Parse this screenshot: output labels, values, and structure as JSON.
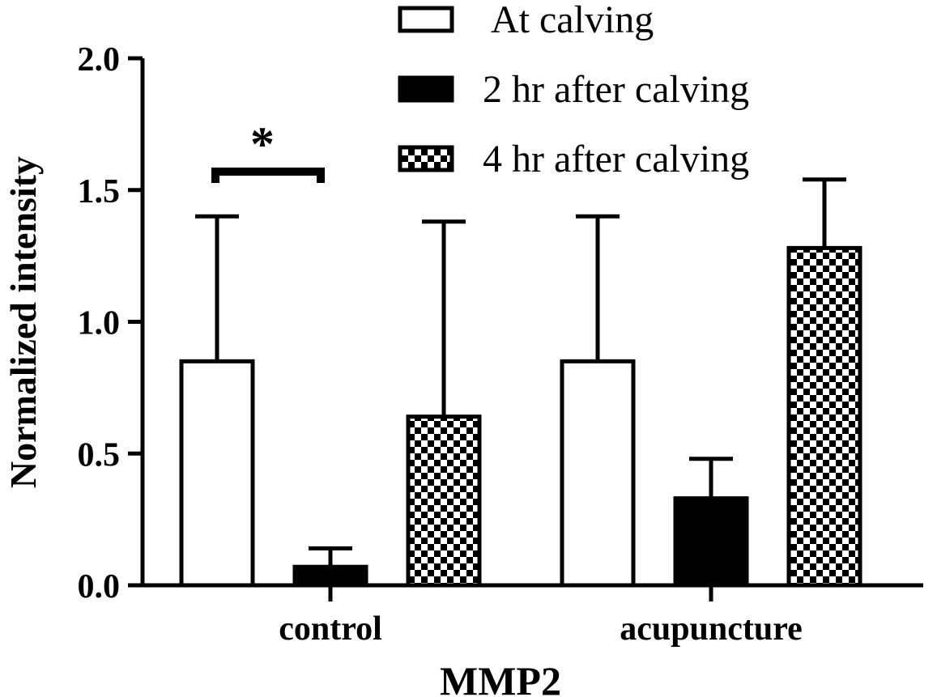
{
  "chart_data": {
    "type": "bar",
    "title": "",
    "xlabel": "MMP2",
    "ylabel": "Normalized intensity",
    "ylim": [
      0,
      2.0
    ],
    "yticks": [
      0.0,
      0.5,
      1.0,
      1.5,
      2.0
    ],
    "ytick_labels": [
      "0.0",
      "0.5",
      "1.0",
      "1.5",
      "2.0"
    ],
    "categories": [
      "control",
      "acupuncture"
    ],
    "series": [
      {
        "name": "At calving",
        "values": [
          0.85,
          0.85
        ],
        "errors": [
          0.55,
          0.55
        ],
        "fill": "hollow",
        "color": "#000000"
      },
      {
        "name": "2 hr after calving",
        "values": [
          0.07,
          0.33
        ],
        "errors": [
          0.07,
          0.15
        ],
        "fill": "solid",
        "color": "#000000"
      },
      {
        "name": "4 hr after calving",
        "values": [
          0.64,
          1.28
        ],
        "errors": [
          0.74,
          0.26
        ],
        "fill": "checker",
        "color": "#000000"
      }
    ],
    "legend_position": "top-right",
    "annotations": [
      {
        "text": "*",
        "category": "control",
        "between_series": [
          "At calving",
          "2 hr after calving"
        ]
      }
    ],
    "grid": false
  }
}
